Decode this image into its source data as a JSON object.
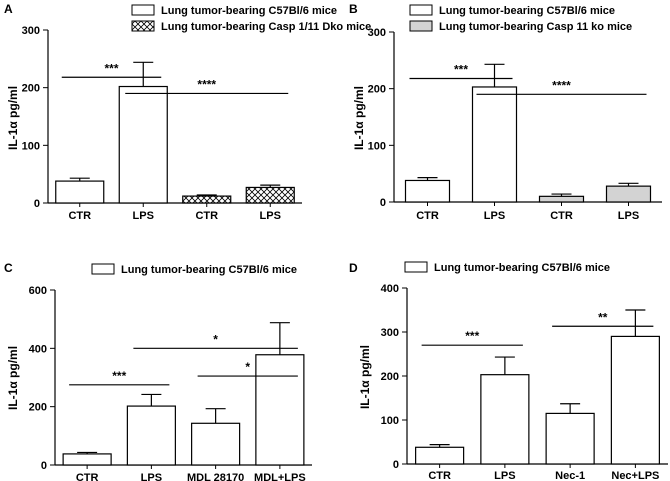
{
  "chart_data": [
    {
      "panel": "A",
      "type": "bar",
      "ylabel": "IL-1α pg/ml",
      "ylim": [
        0,
        300
      ],
      "yticks": [
        0,
        100,
        200,
        300
      ],
      "legend": [
        {
          "label": "Lung tumor-bearing C57Bl/6 mice",
          "pattern": "white"
        },
        {
          "label": "Lung tumor-bearing Casp 1/11 Dko mice",
          "pattern": "crosshatch"
        }
      ],
      "categories": [
        "CTR",
        "LPS",
        "CTR",
        "LPS"
      ],
      "values": [
        38,
        202,
        12,
        27
      ],
      "errors": [
        5,
        42,
        2,
        4
      ],
      "patterns": [
        "white",
        "white",
        "crosshatch",
        "crosshatch"
      ],
      "significance": [
        {
          "label": "***",
          "from": 0,
          "to": 1,
          "y": 218
        },
        {
          "label": "****",
          "from": 1,
          "to": 3,
          "y": 190
        }
      ]
    },
    {
      "panel": "B",
      "type": "bar",
      "ylabel": "IL-1α pg/ml",
      "ylim": [
        0,
        300
      ],
      "yticks": [
        0,
        100,
        200,
        300
      ],
      "legend": [
        {
          "label": "Lung tumor-bearing C57Bl/6 mice",
          "pattern": "white"
        },
        {
          "label": "Lung tumor-bearing Casp 11 ko mice",
          "pattern": "gray"
        }
      ],
      "categories": [
        "CTR",
        "LPS",
        "CTR",
        "LPS"
      ],
      "values": [
        38,
        203,
        10,
        28
      ],
      "errors": [
        5,
        40,
        4,
        5
      ],
      "patterns": [
        "white",
        "white",
        "gray",
        "gray"
      ],
      "significance": [
        {
          "label": "***",
          "from": 0,
          "to": 1,
          "y": 218
        },
        {
          "label": "****",
          "from": 1,
          "to": 3,
          "y": 190
        }
      ]
    },
    {
      "panel": "C",
      "type": "bar",
      "ylabel": "IL-1α pg/ml",
      "ylim": [
        0,
        600
      ],
      "yticks": [
        0,
        200,
        400,
        600
      ],
      "legend": [
        {
          "label": "Lung tumor-bearing C57Bl/6 mice",
          "pattern": "white"
        }
      ],
      "categories": [
        "CTR",
        "LPS",
        "MDL 28170",
        "MDL+LPS"
      ],
      "values": [
        38,
        202,
        143,
        378
      ],
      "errors": [
        5,
        40,
        50,
        110
      ],
      "patterns": [
        "white",
        "white",
        "white",
        "white"
      ],
      "significance": [
        {
          "label": "***",
          "from": 0,
          "to": 1,
          "y": 275
        },
        {
          "label": "*",
          "from": 1,
          "to": 3,
          "y": 400
        },
        {
          "label": "*",
          "from": 2,
          "to": 3,
          "y": 305
        }
      ]
    },
    {
      "panel": "D",
      "type": "bar",
      "ylabel": "IL-1α pg/ml",
      "ylim": [
        0,
        400
      ],
      "yticks": [
        0,
        100,
        200,
        300,
        400
      ],
      "legend": [
        {
          "label": "Lung tumor-bearing C57Bl/6 mice",
          "pattern": "white"
        }
      ],
      "categories": [
        "CTR",
        "LPS",
        "Nec-1",
        "Nec+LPS"
      ],
      "values": [
        38,
        203,
        115,
        290
      ],
      "errors": [
        6,
        40,
        22,
        60
      ],
      "patterns": [
        "white",
        "white",
        "white",
        "white"
      ],
      "significance": [
        {
          "label": "***",
          "from": 0,
          "to": 1,
          "y": 270
        },
        {
          "label": "**",
          "from": 2,
          "to": 3,
          "y": 313
        }
      ]
    }
  ]
}
